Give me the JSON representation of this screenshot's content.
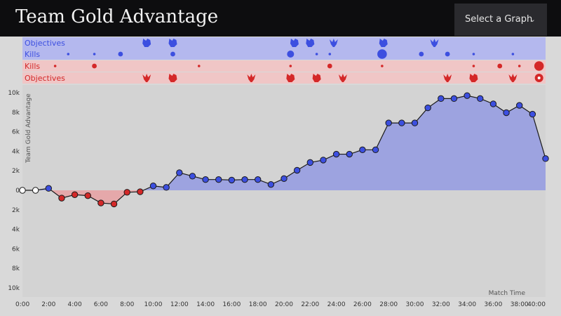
{
  "header": {
    "title": "Team Gold Advantage",
    "select_label": "Select a Graph"
  },
  "colors": {
    "blue": "#3c4fe0",
    "red": "#d42828",
    "blue_lane": "#b4b8ee",
    "red_lane": "#f0c6c6",
    "blue_fill": "#9aa0e0",
    "red_fill": "#e6a5a8",
    "plot_bg": "#d3d3d3"
  },
  "lanes": [
    {
      "label": "Objectives",
      "team": "blue",
      "kind": "objectives",
      "events": [
        {
          "t": 9.5,
          "icon": "baron"
        },
        {
          "t": 11.5,
          "icon": "baron"
        },
        {
          "t": 20.8,
          "icon": "baron"
        },
        {
          "t": 22.0,
          "icon": "baron"
        },
        {
          "t": 23.8,
          "icon": "dragon"
        },
        {
          "t": 27.6,
          "icon": "baron"
        },
        {
          "t": 31.5,
          "icon": "dragon"
        }
      ]
    },
    {
      "label": "Kills",
      "team": "blue",
      "kind": "kills",
      "events": [
        {
          "t": 3.5,
          "count": 1
        },
        {
          "t": 5.5,
          "count": 1
        },
        {
          "t": 7.5,
          "count": 2
        },
        {
          "t": 11.5,
          "count": 2
        },
        {
          "t": 20.5,
          "count": 3
        },
        {
          "t": 22.5,
          "count": 1
        },
        {
          "t": 23.5,
          "count": 1
        },
        {
          "t": 27.5,
          "count": 4
        },
        {
          "t": 30.5,
          "count": 2
        },
        {
          "t": 32.5,
          "count": 2
        },
        {
          "t": 34.5,
          "count": 1
        },
        {
          "t": 37.5,
          "count": 1
        }
      ]
    },
    {
      "label": "Kills",
      "team": "red",
      "kind": "kills",
      "events": [
        {
          "t": 2.5,
          "count": 1
        },
        {
          "t": 5.5,
          "count": 2
        },
        {
          "t": 13.5,
          "count": 1
        },
        {
          "t": 20.5,
          "count": 1
        },
        {
          "t": 23.5,
          "count": 2
        },
        {
          "t": 27.5,
          "count": 1
        },
        {
          "t": 34.5,
          "count": 1
        },
        {
          "t": 36.5,
          "count": 2
        },
        {
          "t": 38.0,
          "count": 1
        },
        {
          "t": 39.5,
          "count": 4
        }
      ]
    },
    {
      "label": "Objectives",
      "team": "red",
      "kind": "objectives",
      "events": [
        {
          "t": 9.5,
          "icon": "dragon"
        },
        {
          "t": 11.5,
          "icon": "baron"
        },
        {
          "t": 17.5,
          "icon": "dragon"
        },
        {
          "t": 20.5,
          "icon": "baron"
        },
        {
          "t": 22.5,
          "icon": "baron"
        },
        {
          "t": 24.5,
          "icon": "dragon"
        },
        {
          "t": 32.5,
          "icon": "dragon"
        },
        {
          "t": 34.5,
          "icon": "baron"
        },
        {
          "t": 37.5,
          "icon": "dragon"
        },
        {
          "t": 39.5,
          "icon": "turret"
        }
      ]
    }
  ],
  "chart_data": {
    "type": "area",
    "title": "Team Gold Advantage",
    "xlabel": "Match Time",
    "ylabel": "Team Gold Advantage",
    "xlim": [
      0,
      40
    ],
    "ylim": [
      -10500,
      10500
    ],
    "x_ticks": [
      "0:00",
      "2:00",
      "4:00",
      "6:00",
      "8:00",
      "10:00",
      "12:00",
      "14:00",
      "16:00",
      "18:00",
      "20:00",
      "22:00",
      "24:00",
      "26:00",
      "28:00",
      "30:00",
      "32:00",
      "34:00",
      "36:00",
      "38:00",
      "40:00"
    ],
    "y_ticks": [
      {
        "value": 10000,
        "label": "10k"
      },
      {
        "value": 8000,
        "label": "8k"
      },
      {
        "value": 6000,
        "label": "6k"
      },
      {
        "value": 4000,
        "label": "4k"
      },
      {
        "value": 2000,
        "label": "2k"
      },
      {
        "value": 0,
        "label": "0"
      },
      {
        "value": -2000,
        "label": "2k"
      },
      {
        "value": -4000,
        "label": "4k"
      },
      {
        "value": -6000,
        "label": "6k"
      },
      {
        "value": -8000,
        "label": "8k"
      },
      {
        "value": -10000,
        "label": "10k"
      }
    ],
    "grid": false,
    "x": [
      0,
      1,
      2,
      3,
      4,
      5,
      6,
      7,
      8,
      9,
      10,
      11,
      12,
      13,
      14,
      15,
      16,
      17,
      18,
      19,
      20,
      21,
      22,
      23,
      24,
      25,
      26,
      27,
      28,
      29,
      30,
      31,
      32,
      33,
      34,
      35,
      36,
      37,
      38,
      39,
      40
    ],
    "values": [
      0,
      0,
      200,
      -800,
      -450,
      -550,
      -1300,
      -1400,
      -200,
      -150,
      450,
      300,
      1800,
      1450,
      1100,
      1100,
      1050,
      1100,
      1100,
      600,
      1200,
      2050,
      2850,
      3100,
      3700,
      3700,
      4150,
      4150,
      6900,
      6900,
      6900,
      8450,
      9400,
      9400,
      9700,
      9400,
      8850,
      7950,
      8700,
      7800,
      3250
    ]
  }
}
